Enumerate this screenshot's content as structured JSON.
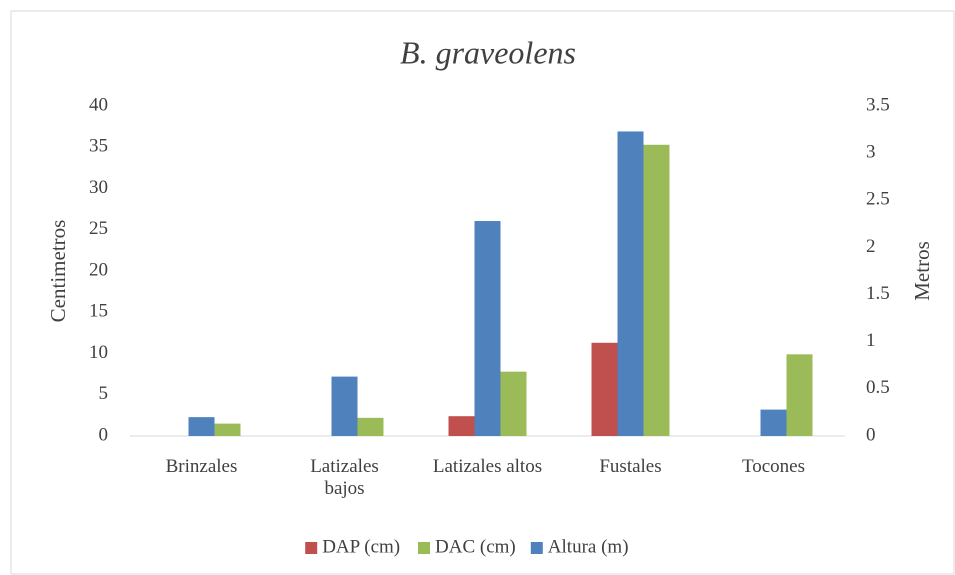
{
  "chart_data": {
    "type": "bar",
    "title": "B. graveolens",
    "y_label": "Centimetros",
    "y2_label": "Metros",
    "categories": [
      "Brinzales",
      "Latizales bajos",
      "Latizales altos",
      "Fustales",
      "Tocones"
    ],
    "series": [
      {
        "name": "DAP (cm)",
        "color": "#c0504d",
        "values": [
          0,
          0,
          2.4,
          11.3,
          0
        ]
      },
      {
        "name": "DAC (cm)",
        "color": "#9bbb59",
        "values": [
          1.5,
          2.2,
          7.8,
          35.3,
          9.9
        ]
      },
      {
        "name": "Altura (m)",
        "color": "#4f81bd",
        "axis": "y2",
        "values": [
          0.2,
          0.63,
          2.28,
          3.23,
          0.28
        ]
      }
    ],
    "ylim": [
      0,
      40
    ],
    "yticks": [
      0,
      5,
      10,
      15,
      20,
      25,
      30,
      35,
      40
    ],
    "y2lim": [
      0,
      3.5
    ],
    "y2ticks": [
      0,
      0.5,
      1,
      1.5,
      2,
      2.5,
      3,
      3.5
    ],
    "grid": false,
    "legend": "bottom"
  }
}
